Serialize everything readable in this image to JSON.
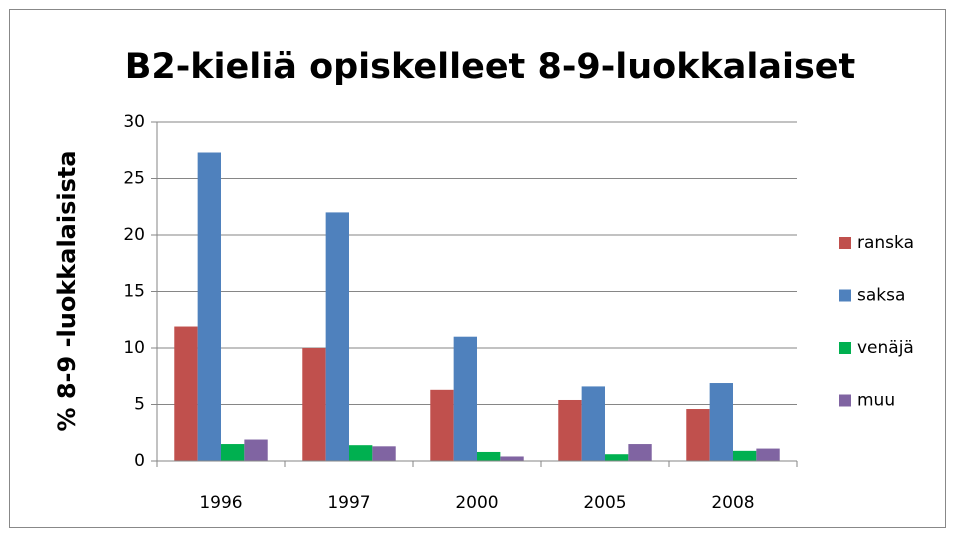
{
  "chart_data": {
    "type": "bar",
    "title": "B2-kieliä opiskelleet 8-9-luokkalaiset",
    "y_label": "% 8-9 -luokkalaisista",
    "categories": [
      "1996",
      "1997",
      "2000",
      "2005",
      "2008"
    ],
    "series": [
      {
        "name": "ranska",
        "color": "#c0504d",
        "values": [
          11.9,
          10.0,
          6.3,
          5.4,
          4.6
        ]
      },
      {
        "name": "saksa",
        "color": "#4f81bd",
        "values": [
          27.3,
          22.0,
          11.0,
          6.6,
          6.9
        ]
      },
      {
        "name": "venäjä",
        "color": "#00b050",
        "values": [
          1.5,
          1.4,
          0.8,
          0.6,
          0.9
        ]
      },
      {
        "name": "muu",
        "color": "#8064a2",
        "values": [
          1.9,
          1.3,
          0.4,
          1.5,
          1.1
        ]
      }
    ],
    "ylim": [
      0,
      30
    ],
    "yticks": [
      0,
      5,
      10,
      15,
      20,
      25,
      30
    ],
    "grid": true,
    "legend": "right"
  }
}
